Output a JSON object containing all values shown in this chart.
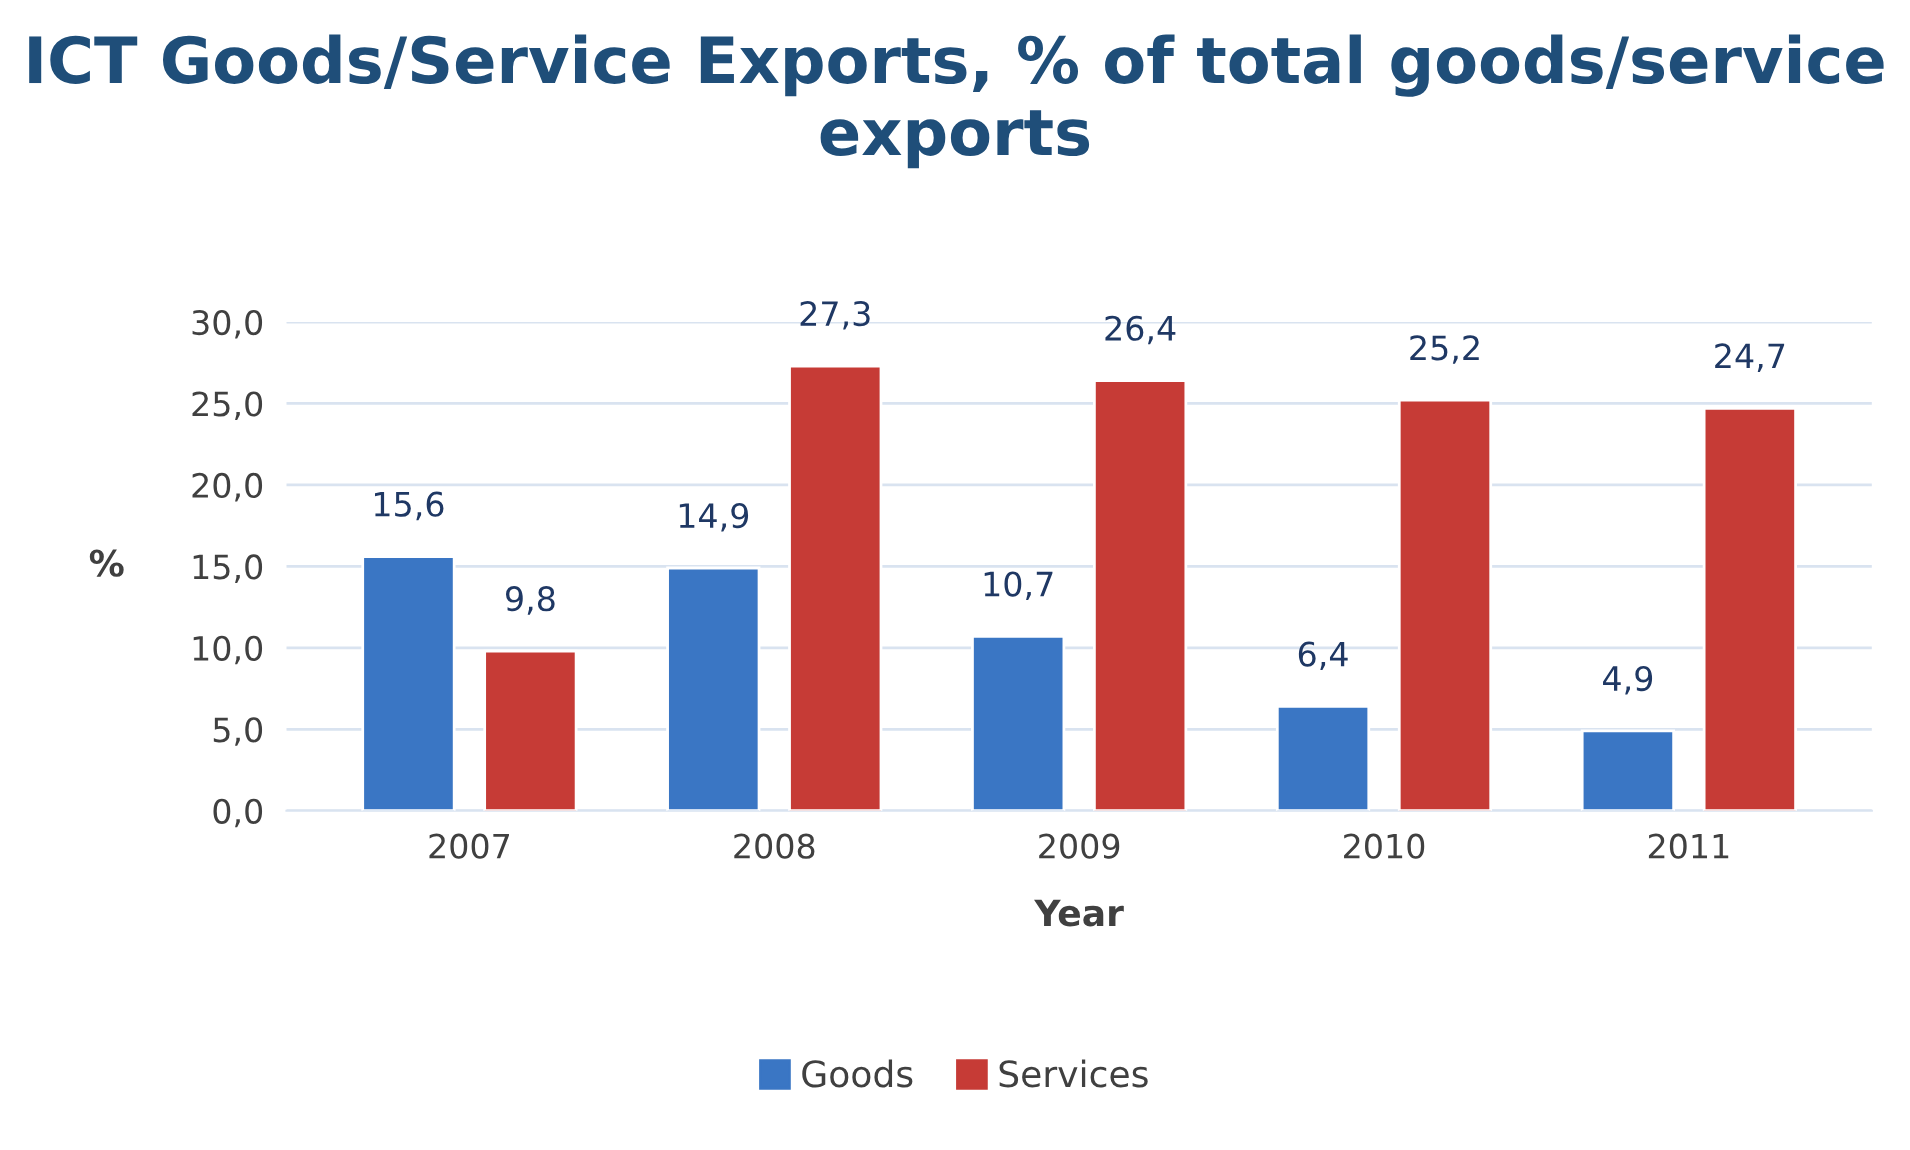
{
  "chart_data": {
    "type": "bar",
    "title": "ICT Goods/Service Exports, % of total goods/service exports",
    "xlabel": "Year",
    "ylabel": "%",
    "categories": [
      "2007",
      "2008",
      "2009",
      "2010",
      "2011"
    ],
    "series": [
      {
        "name": "Goods",
        "color": "#3a76c4",
        "values": [
          15.6,
          14.9,
          10.7,
          6.4,
          4.9
        ],
        "value_labels": [
          "15,6",
          "14,9",
          "10,7",
          "6,4",
          "4,9"
        ]
      },
      {
        "name": "Services",
        "color": "#c63b36",
        "values": [
          9.8,
          27.3,
          26.4,
          25.2,
          24.7
        ],
        "value_labels": [
          "9,8",
          "27,3",
          "26,4",
          "25,2",
          "24,7"
        ]
      }
    ],
    "ylim": [
      0,
      30
    ],
    "yticks": [
      {
        "value": 0,
        "label": "0,0"
      },
      {
        "value": 5,
        "label": "5,0"
      },
      {
        "value": 10,
        "label": "10,0"
      },
      {
        "value": 15,
        "label": "15,0"
      },
      {
        "value": 20,
        "label": "20,0"
      },
      {
        "value": 25,
        "label": "25,0"
      },
      {
        "value": 30,
        "label": "30,0"
      }
    ],
    "grid": "y",
    "legend": "bottom"
  }
}
